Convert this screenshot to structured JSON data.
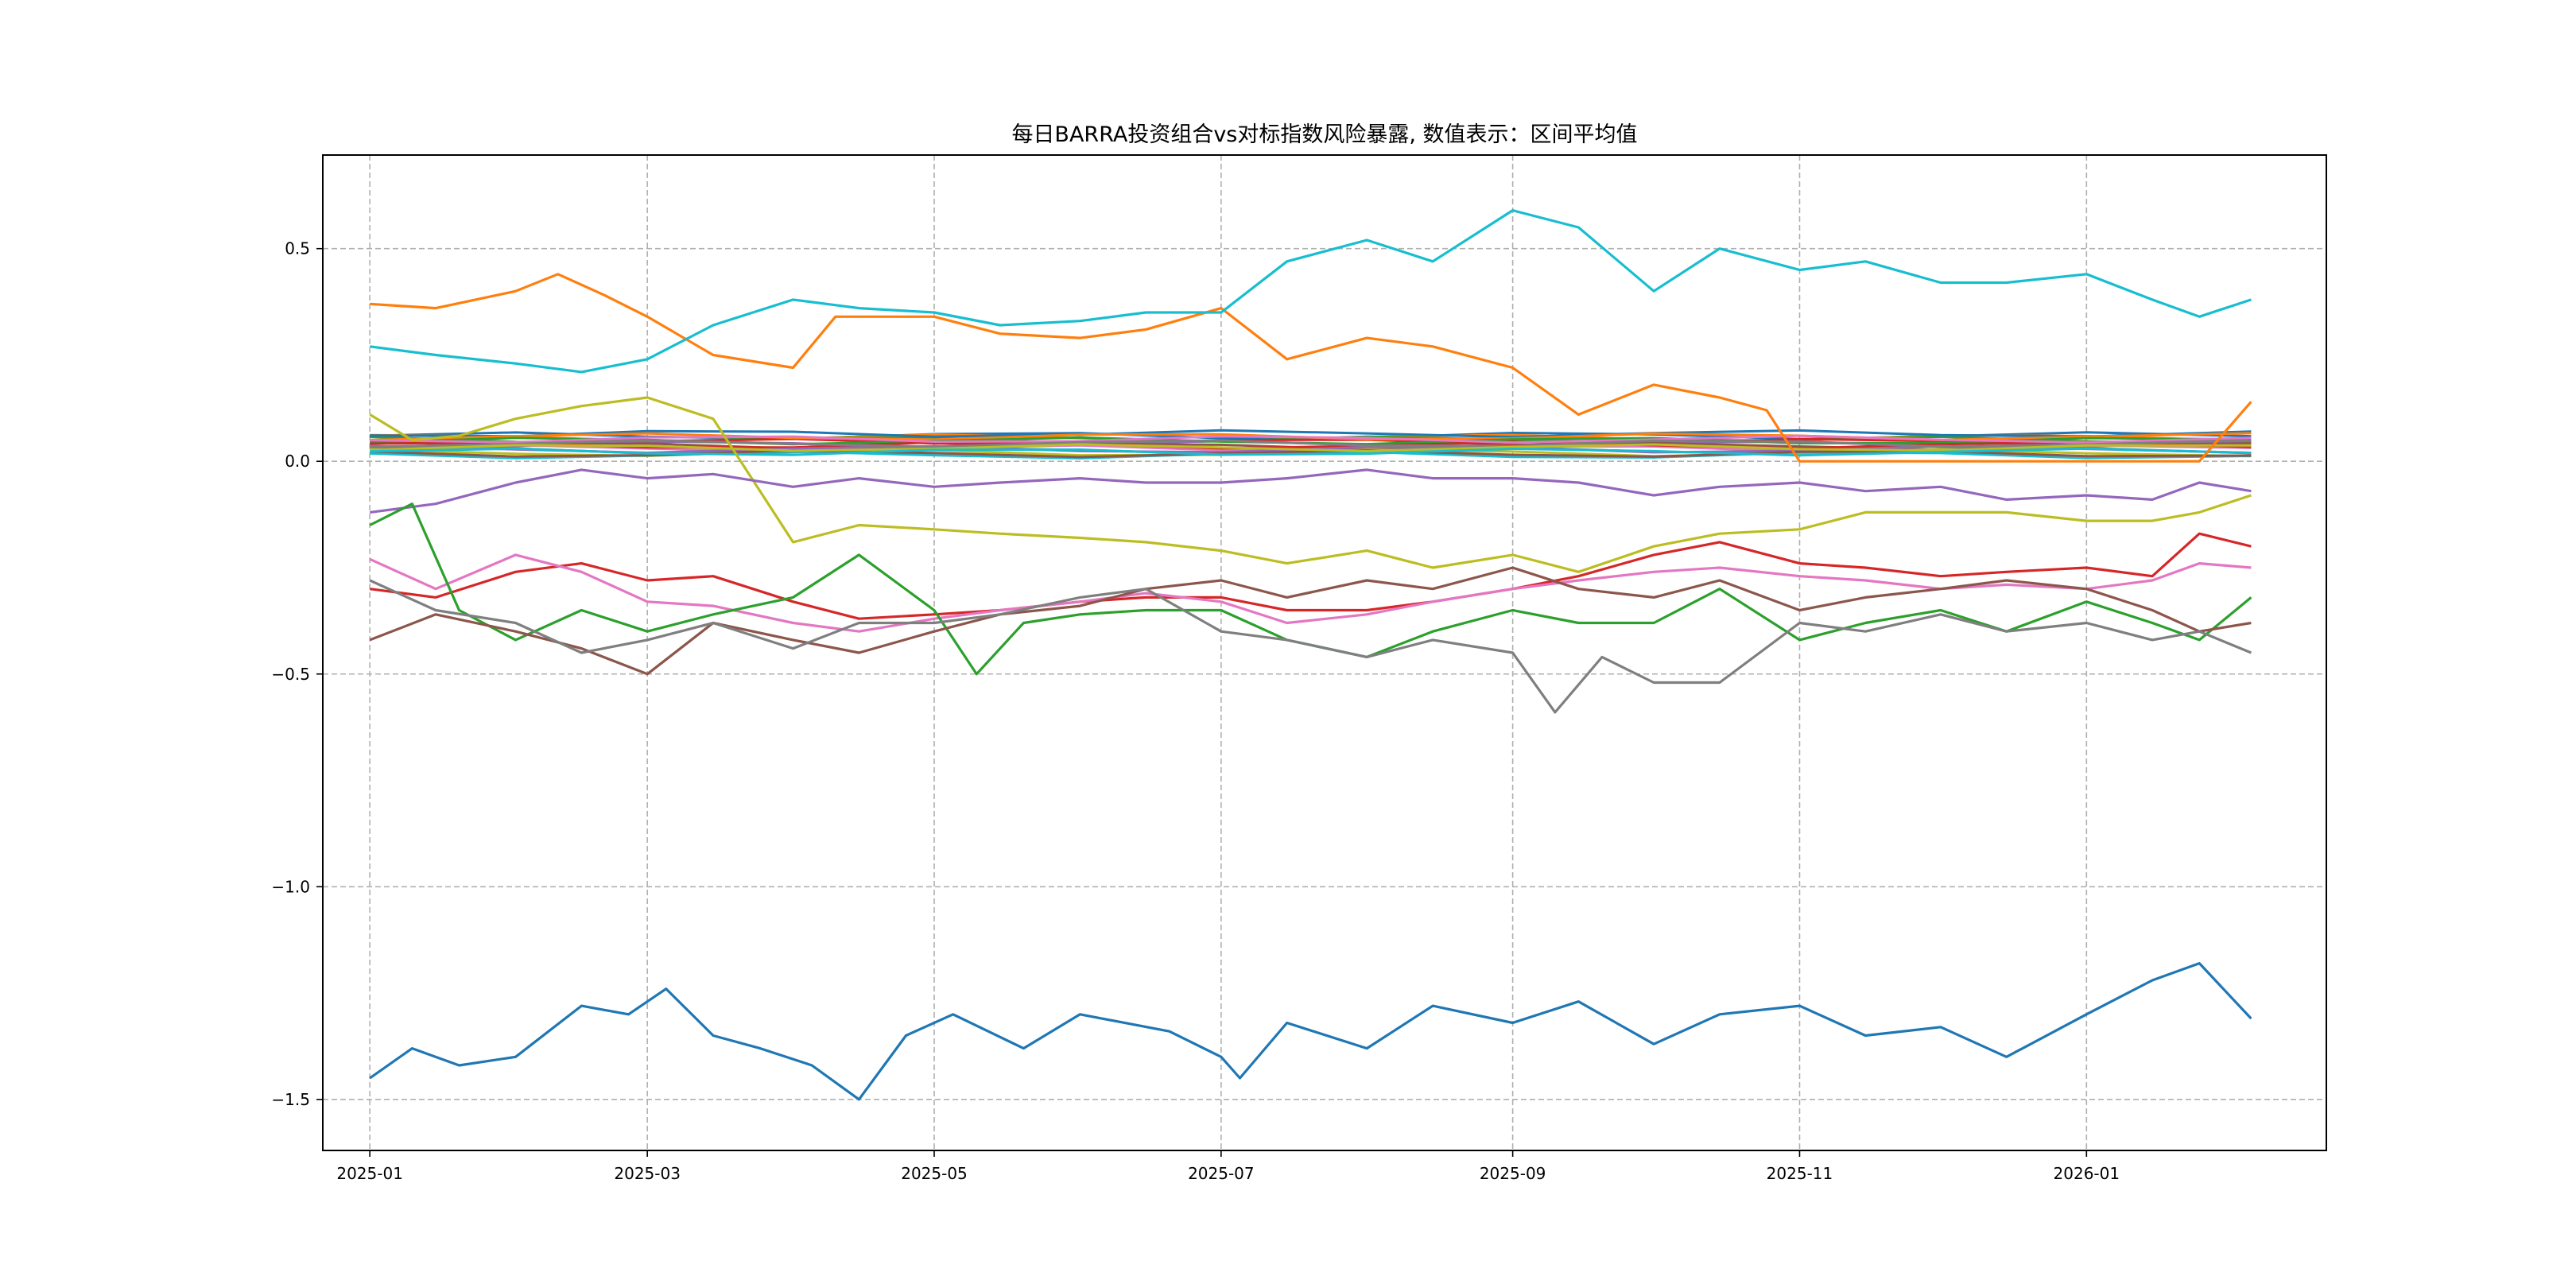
{
  "chart_data": {
    "type": "line",
    "title": "每日BARRA投资组合vs对标指数风险暴露, 数值表示：区间平均值",
    "xlabel": "",
    "ylabel": "",
    "x_range": [
      "2024-12-22",
      "2026-02-21"
    ],
    "ylim": [
      -1.62,
      0.72
    ],
    "x_ticks": [
      "2025-01-01",
      "2025-03-01",
      "2025-05-01",
      "2025-07-01",
      "2025-09-01",
      "2025-11-01",
      "2026-01-01"
    ],
    "x_tick_labels": [
      "2025-01",
      "2025-03",
      "2025-05",
      "2025-07",
      "2025-09",
      "2025-11",
      "2026-01"
    ],
    "y_ticks": [
      -1.5,
      -1.0,
      -0.5,
      0.0,
      0.5
    ],
    "y_tick_labels": [
      "−1.5",
      "−1.0",
      "−0.5",
      "0.0",
      "0.5"
    ],
    "grid": true,
    "legend": "none",
    "series": [
      {
        "color": "#1f77b4",
        "x": [
          "2025-01-01",
          "2025-01-10",
          "2025-01-20",
          "2025-02-01",
          "2025-02-15",
          "2025-02-25",
          "2025-03-05",
          "2025-03-15",
          "2025-03-25",
          "2025-04-05",
          "2025-04-15",
          "2025-04-25",
          "2025-05-05",
          "2025-05-20",
          "2025-06-01",
          "2025-06-20",
          "2025-07-01",
          "2025-07-05",
          "2025-07-15",
          "2025-08-01",
          "2025-08-15",
          "2025-09-01",
          "2025-09-15",
          "2025-10-01",
          "2025-10-15",
          "2025-11-01",
          "2025-11-15",
          "2025-12-01",
          "2025-12-15",
          "2026-01-01",
          "2026-01-15",
          "2026-01-25",
          "2026-02-05"
        ],
        "values": [
          -1.45,
          -1.38,
          -1.42,
          -1.4,
          -1.28,
          -1.3,
          -1.24,
          -1.35,
          -1.38,
          -1.42,
          -1.5,
          -1.35,
          -1.3,
          -1.38,
          -1.3,
          -1.34,
          -1.4,
          -1.45,
          -1.32,
          -1.38,
          -1.28,
          -1.32,
          -1.27,
          -1.37,
          -1.3,
          -1.28,
          -1.35,
          -1.33,
          -1.4,
          -1.3,
          -1.22,
          -1.18,
          -1.31
        ]
      },
      {
        "color": "#ff7f0e",
        "x": [
          "2025-01-01",
          "2025-01-15",
          "2025-02-01",
          "2025-02-10",
          "2025-02-20",
          "2025-03-01",
          "2025-03-15",
          "2025-04-01",
          "2025-04-10",
          "2025-05-01",
          "2025-05-15",
          "2025-06-01",
          "2025-06-15",
          "2025-07-01",
          "2025-07-15",
          "2025-08-01",
          "2025-08-15",
          "2025-09-01",
          "2025-09-15",
          "2025-10-01",
          "2025-10-15",
          "2025-10-25",
          "2025-11-01",
          "2025-11-15",
          "2025-12-01",
          "2025-12-15",
          "2026-01-01",
          "2026-01-15",
          "2026-01-25",
          "2026-02-05"
        ],
        "values": [
          0.37,
          0.36,
          0.4,
          0.44,
          0.39,
          0.34,
          0.25,
          0.22,
          0.34,
          0.34,
          0.3,
          0.29,
          0.31,
          0.36,
          0.24,
          0.29,
          0.27,
          0.22,
          0.11,
          0.18,
          0.15,
          0.12,
          0.0,
          0.0,
          0.0,
          0.0,
          0.0,
          0.0,
          0.0,
          0.14
        ]
      },
      {
        "color": "#17becf",
        "x": [
          "2025-01-01",
          "2025-01-15",
          "2025-02-01",
          "2025-02-15",
          "2025-03-01",
          "2025-03-15",
          "2025-04-01",
          "2025-04-15",
          "2025-05-01",
          "2025-05-15",
          "2025-06-01",
          "2025-06-15",
          "2025-07-01",
          "2025-07-15",
          "2025-08-01",
          "2025-08-15",
          "2025-09-01",
          "2025-09-15",
          "2025-10-01",
          "2025-10-15",
          "2025-11-01",
          "2025-11-15",
          "2025-12-01",
          "2025-12-15",
          "2026-01-01",
          "2026-01-15",
          "2026-01-25",
          "2026-02-05"
        ],
        "values": [
          0.27,
          0.25,
          0.23,
          0.21,
          0.24,
          0.32,
          0.38,
          0.36,
          0.35,
          0.32,
          0.33,
          0.35,
          0.35,
          0.47,
          0.52,
          0.47,
          0.59,
          0.55,
          0.4,
          0.5,
          0.45,
          0.47,
          0.42,
          0.42,
          0.44,
          0.38,
          0.34,
          0.38
        ]
      },
      {
        "color": "#bcbd22",
        "x": [
          "2025-01-01",
          "2025-01-10",
          "2025-01-20",
          "2025-02-01",
          "2025-02-15",
          "2025-03-01",
          "2025-03-15",
          "2025-04-01",
          "2025-04-15",
          "2025-05-01",
          "2025-05-15",
          "2025-06-01",
          "2025-06-15",
          "2025-07-01",
          "2025-07-15",
          "2025-08-01",
          "2025-08-15",
          "2025-09-01",
          "2025-09-15",
          "2025-10-01",
          "2025-10-15",
          "2025-11-01",
          "2025-11-15",
          "2025-12-01",
          "2025-12-15",
          "2026-01-01",
          "2026-01-15",
          "2026-01-25",
          "2026-02-05"
        ],
        "values": [
          0.11,
          0.05,
          0.06,
          0.1,
          0.13,
          0.15,
          0.1,
          -0.19,
          -0.15,
          -0.16,
          -0.17,
          -0.18,
          -0.19,
          -0.21,
          -0.24,
          -0.21,
          -0.25,
          -0.22,
          -0.26,
          -0.2,
          -0.17,
          -0.16,
          -0.12,
          -0.12,
          -0.12,
          -0.14,
          -0.14,
          -0.12,
          -0.08
        ]
      },
      {
        "color": "#9467bd",
        "x": [
          "2025-01-01",
          "2025-01-15",
          "2025-02-01",
          "2025-02-15",
          "2025-03-01",
          "2025-03-15",
          "2025-04-01",
          "2025-04-15",
          "2025-05-01",
          "2025-05-15",
          "2025-06-01",
          "2025-06-15",
          "2025-07-01",
          "2025-07-15",
          "2025-08-01",
          "2025-08-15",
          "2025-09-01",
          "2025-09-15",
          "2025-10-01",
          "2025-10-15",
          "2025-11-01",
          "2025-11-15",
          "2025-12-01",
          "2025-12-15",
          "2026-01-01",
          "2026-01-15",
          "2026-01-25",
          "2026-02-05"
        ],
        "values": [
          -0.12,
          -0.1,
          -0.05,
          -0.02,
          -0.04,
          -0.03,
          -0.06,
          -0.04,
          -0.06,
          -0.05,
          -0.04,
          -0.05,
          -0.05,
          -0.04,
          -0.02,
          -0.04,
          -0.04,
          -0.05,
          -0.08,
          -0.06,
          -0.05,
          -0.07,
          -0.06,
          -0.09,
          -0.08,
          -0.09,
          -0.05,
          -0.07
        ]
      },
      {
        "color": "#d62728",
        "x": [
          "2025-01-01",
          "2025-01-15",
          "2025-02-01",
          "2025-02-15",
          "2025-03-01",
          "2025-03-15",
          "2025-04-01",
          "2025-04-15",
          "2025-05-01",
          "2025-05-15",
          "2025-06-01",
          "2025-06-15",
          "2025-07-01",
          "2025-07-15",
          "2025-08-01",
          "2025-08-15",
          "2025-09-01",
          "2025-09-15",
          "2025-10-01",
          "2025-10-15",
          "2025-11-01",
          "2025-11-15",
          "2025-12-01",
          "2025-12-15",
          "2026-01-01",
          "2026-01-15",
          "2026-01-25",
          "2026-02-05"
        ],
        "values": [
          -0.3,
          -0.32,
          -0.26,
          -0.24,
          -0.28,
          -0.27,
          -0.33,
          -0.37,
          -0.36,
          -0.35,
          -0.33,
          -0.32,
          -0.32,
          -0.35,
          -0.35,
          -0.33,
          -0.3,
          -0.27,
          -0.22,
          -0.19,
          -0.24,
          -0.25,
          -0.27,
          -0.26,
          -0.25,
          -0.27,
          -0.17,
          -0.2
        ]
      },
      {
        "color": "#e377c2",
        "x": [
          "2025-01-01",
          "2025-01-15",
          "2025-02-01",
          "2025-02-15",
          "2025-03-01",
          "2025-03-15",
          "2025-04-01",
          "2025-04-15",
          "2025-05-01",
          "2025-05-15",
          "2025-06-01",
          "2025-06-15",
          "2025-07-01",
          "2025-07-15",
          "2025-08-01",
          "2025-08-15",
          "2025-09-01",
          "2025-09-15",
          "2025-10-01",
          "2025-10-15",
          "2025-11-01",
          "2025-11-15",
          "2025-12-01",
          "2025-12-15",
          "2026-01-01",
          "2026-01-15",
          "2026-01-25",
          "2026-02-05"
        ],
        "values": [
          -0.23,
          -0.3,
          -0.22,
          -0.26,
          -0.33,
          -0.34,
          -0.38,
          -0.4,
          -0.37,
          -0.35,
          -0.33,
          -0.31,
          -0.33,
          -0.38,
          -0.36,
          -0.33,
          -0.3,
          -0.28,
          -0.26,
          -0.25,
          -0.27,
          -0.28,
          -0.3,
          -0.29,
          -0.3,
          -0.28,
          -0.24,
          -0.25
        ]
      },
      {
        "color": "#2ca02c",
        "x": [
          "2025-01-01",
          "2025-01-10",
          "2025-01-20",
          "2025-02-01",
          "2025-02-15",
          "2025-03-01",
          "2025-03-15",
          "2025-04-01",
          "2025-04-15",
          "2025-05-01",
          "2025-05-10",
          "2025-05-20",
          "2025-06-01",
          "2025-06-15",
          "2025-07-01",
          "2025-07-15",
          "2025-08-01",
          "2025-08-15",
          "2025-09-01",
          "2025-09-15",
          "2025-10-01",
          "2025-10-15",
          "2025-11-01",
          "2025-11-15",
          "2025-12-01",
          "2025-12-15",
          "2026-01-01",
          "2026-01-15",
          "2026-01-25",
          "2026-02-05"
        ],
        "values": [
          -0.15,
          -0.1,
          -0.35,
          -0.42,
          -0.35,
          -0.4,
          -0.36,
          -0.32,
          -0.22,
          -0.35,
          -0.5,
          -0.38,
          -0.36,
          -0.35,
          -0.35,
          -0.42,
          -0.46,
          -0.4,
          -0.35,
          -0.38,
          -0.38,
          -0.3,
          -0.42,
          -0.38,
          -0.35,
          -0.4,
          -0.33,
          -0.38,
          -0.42,
          -0.32
        ]
      },
      {
        "color": "#8c564b",
        "x": [
          "2025-01-01",
          "2025-01-15",
          "2025-02-01",
          "2025-02-15",
          "2025-03-01",
          "2025-03-15",
          "2025-04-01",
          "2025-04-15",
          "2025-05-01",
          "2025-05-15",
          "2025-06-01",
          "2025-06-15",
          "2025-07-01",
          "2025-07-15",
          "2025-08-01",
          "2025-08-15",
          "2025-09-01",
          "2025-09-15",
          "2025-10-01",
          "2025-10-15",
          "2025-11-01",
          "2025-11-15",
          "2025-12-01",
          "2025-12-15",
          "2026-01-01",
          "2026-01-15",
          "2026-01-25",
          "2026-02-05"
        ],
        "values": [
          -0.42,
          -0.36,
          -0.4,
          -0.44,
          -0.5,
          -0.38,
          -0.42,
          -0.45,
          -0.4,
          -0.36,
          -0.34,
          -0.3,
          -0.28,
          -0.32,
          -0.28,
          -0.3,
          -0.25,
          -0.3,
          -0.32,
          -0.28,
          -0.35,
          -0.32,
          -0.3,
          -0.28,
          -0.3,
          -0.35,
          -0.4,
          -0.38
        ]
      },
      {
        "color": "#7f7f7f",
        "x": [
          "2025-01-01",
          "2025-01-15",
          "2025-02-01",
          "2025-02-15",
          "2025-03-01",
          "2025-03-15",
          "2025-04-01",
          "2025-04-15",
          "2025-05-01",
          "2025-05-15",
          "2025-06-01",
          "2025-06-15",
          "2025-07-01",
          "2025-07-15",
          "2025-08-01",
          "2025-08-15",
          "2025-09-01",
          "2025-09-10",
          "2025-09-20",
          "2025-10-01",
          "2025-10-15",
          "2025-11-01",
          "2025-11-15",
          "2025-12-01",
          "2025-12-15",
          "2026-01-01",
          "2026-01-15",
          "2026-01-25",
          "2026-02-05"
        ],
        "values": [
          -0.28,
          -0.35,
          -0.38,
          -0.45,
          -0.42,
          -0.38,
          -0.44,
          -0.38,
          -0.38,
          -0.36,
          -0.32,
          -0.3,
          -0.4,
          -0.42,
          -0.46,
          -0.42,
          -0.45,
          -0.59,
          -0.46,
          -0.52,
          -0.52,
          -0.38,
          -0.4,
          -0.36,
          -0.4,
          -0.38,
          -0.42,
          -0.4,
          -0.45
        ]
      }
    ],
    "near_zero_band": {
      "count": 20,
      "colors": [
        "#1f77b4",
        "#ff7f0e",
        "#2ca02c",
        "#d62728",
        "#9467bd",
        "#8c564b",
        "#e377c2",
        "#7f7f7f",
        "#bcbd22",
        "#17becf",
        "#1f77b4",
        "#ff7f0e",
        "#2ca02c",
        "#d62728",
        "#9467bd",
        "#8c564b",
        "#e377c2",
        "#7f7f7f",
        "#bcbd22",
        "#17becf"
      ],
      "levels": [
        0.06,
        0.055,
        0.05,
        0.045,
        0.04,
        0.035,
        0.03,
        0.025,
        0.02,
        0.015,
        0.065,
        0.058,
        0.048,
        0.038,
        0.028,
        0.018,
        0.052,
        0.042,
        0.032,
        0.022
      ]
    }
  }
}
